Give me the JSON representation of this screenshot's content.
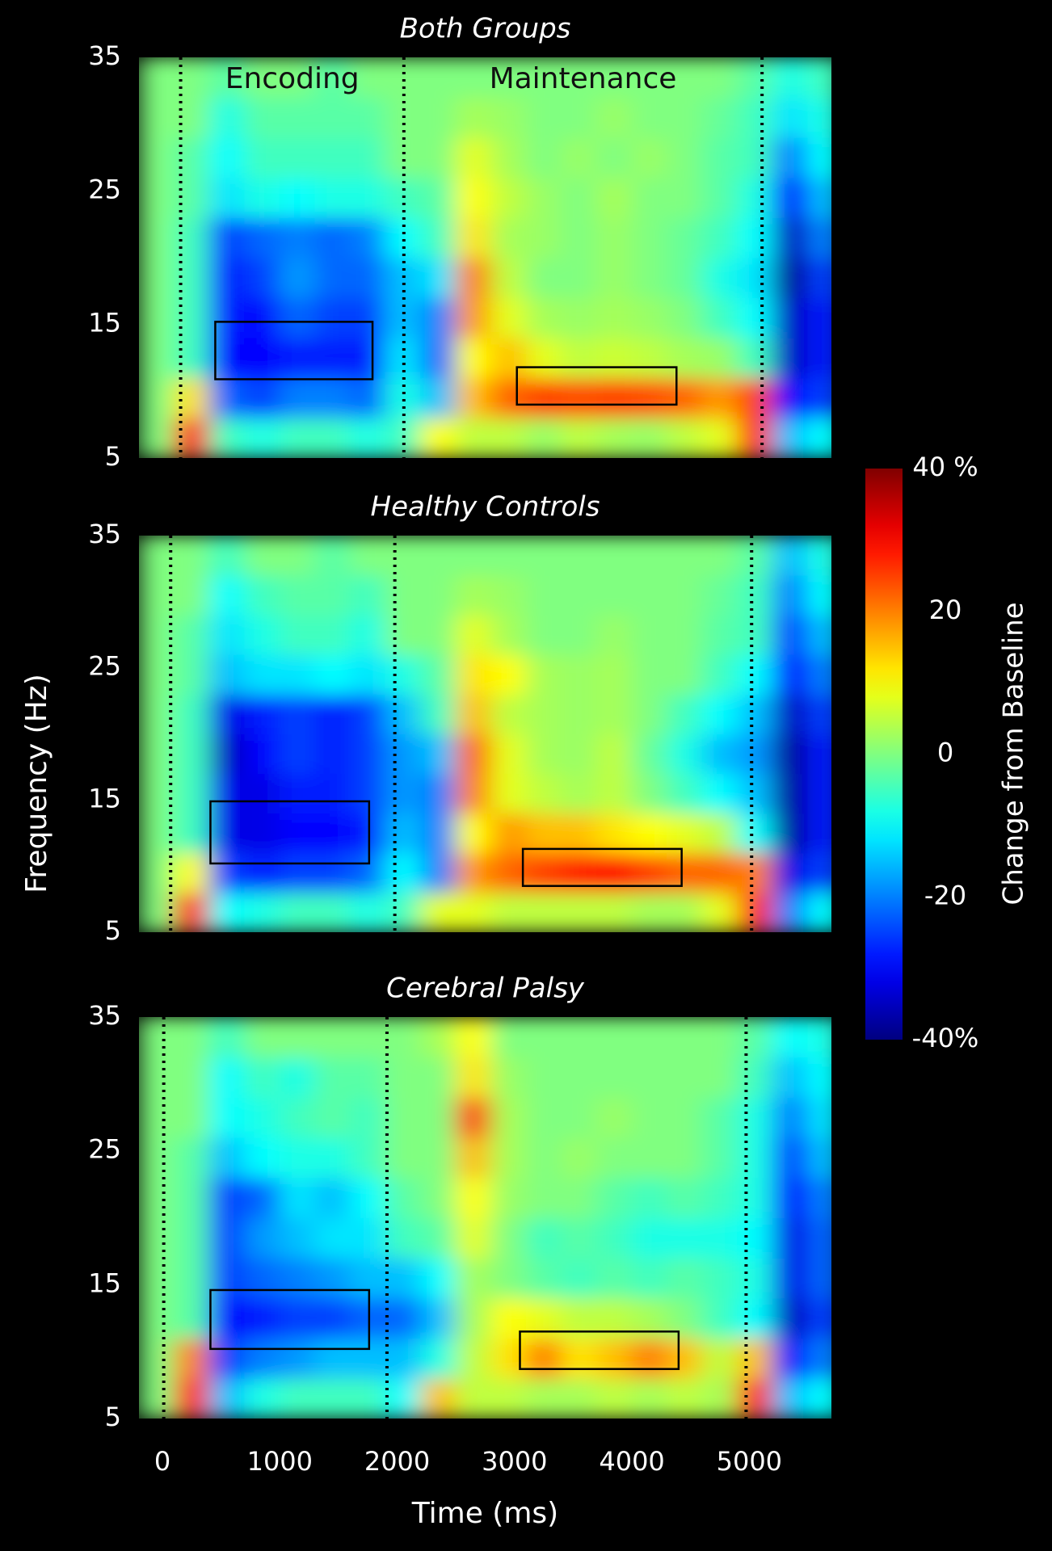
{
  "chart_data": [
    {
      "type": "heatmap",
      "title": "Both Groups",
      "colormap": "jet",
      "annotations": [
        "Encoding",
        "Maintenance"
      ],
      "xlim": [
        -200,
        5700
      ],
      "ylim": [
        5,
        35
      ],
      "yticks": [
        5,
        15,
        25,
        35
      ],
      "zlim": [
        -40,
        40
      ],
      "x": [
        -50,
        250,
        550,
        850,
        1150,
        1450,
        1750,
        2050,
        2350,
        2650,
        2950,
        3250,
        3550,
        3850,
        4150,
        4450,
        4750,
        5050,
        5350,
        5650
      ],
      "y": [
        6.5,
        9.5,
        12.5,
        15.5,
        18.5,
        21.5,
        24.5,
        27.5,
        30.5,
        33.5
      ],
      "z": [
        [
          0,
          30,
          -5,
          -8,
          -5,
          -5,
          -8,
          -5,
          10,
          5,
          5,
          2,
          5,
          3,
          2,
          5,
          8,
          30,
          -15,
          -10
        ],
        [
          0,
          12,
          -22,
          -25,
          -20,
          -20,
          -22,
          -8,
          -15,
          15,
          22,
          25,
          24,
          25,
          24,
          22,
          18,
          25,
          -30,
          -25
        ],
        [
          0,
          -5,
          -30,
          -30,
          -28,
          -28,
          -28,
          -12,
          -22,
          10,
          15,
          8,
          5,
          6,
          5,
          3,
          2,
          -5,
          -35,
          -28
        ],
        [
          0,
          -5,
          -28,
          -30,
          -22,
          -25,
          -25,
          -15,
          -20,
          18,
          8,
          3,
          2,
          3,
          2,
          0,
          -5,
          -10,
          -35,
          -28
        ],
        [
          0,
          -5,
          -28,
          -25,
          -18,
          -22,
          -22,
          -15,
          -12,
          20,
          5,
          0,
          0,
          2,
          0,
          -2,
          -8,
          -12,
          -38,
          -25
        ],
        [
          0,
          -5,
          -25,
          -22,
          -20,
          -22,
          -20,
          -10,
          -5,
          12,
          3,
          2,
          0,
          2,
          0,
          -2,
          -5,
          -10,
          -35,
          -20
        ],
        [
          0,
          -3,
          -12,
          -8,
          -10,
          -8,
          -8,
          -5,
          -3,
          10,
          5,
          2,
          0,
          3,
          0,
          0,
          -3,
          -8,
          -30,
          -15
        ],
        [
          0,
          -3,
          -10,
          -5,
          -5,
          -5,
          -5,
          0,
          0,
          8,
          3,
          0,
          2,
          0,
          2,
          0,
          -3,
          -5,
          -20,
          -10
        ],
        [
          0,
          0,
          -8,
          -3,
          -3,
          -3,
          -3,
          0,
          0,
          3,
          2,
          0,
          0,
          2,
          0,
          0,
          -2,
          -5,
          -12,
          -8
        ],
        [
          0,
          0,
          -3,
          0,
          0,
          -3,
          0,
          0,
          0,
          0,
          0,
          0,
          0,
          0,
          0,
          0,
          0,
          -3,
          -8,
          -5
        ]
      ],
      "event_lines": [
        155,
        2057,
        5109
      ],
      "boxes": [
        {
          "x": [
            450,
            1790
          ],
          "y": [
            10.9,
            15.2
          ]
        },
        {
          "x": [
            3020,
            4380
          ],
          "y": [
            9.0,
            11.8
          ]
        }
      ]
    },
    {
      "type": "heatmap",
      "title": "Healthy Controls",
      "colormap": "jet",
      "ylabel": "Frequency (Hz)",
      "xlim": [
        -200,
        5700
      ],
      "ylim": [
        5,
        35
      ],
      "yticks": [
        5,
        15,
        25,
        35
      ],
      "zlim": [
        -40,
        40
      ],
      "zlabel": "Change from Baseline",
      "zticks": [
        {
          "value": 40,
          "label": "40 %"
        },
        20,
        0,
        -20,
        {
          "value": -40,
          "label": "-40%"
        }
      ],
      "x": [
        -50,
        250,
        550,
        850,
        1150,
        1450,
        1750,
        2050,
        2350,
        2650,
        2950,
        3250,
        3550,
        3850,
        4150,
        4450,
        4750,
        5050,
        5350,
        5650
      ],
      "y": [
        6.5,
        9.5,
        12.5,
        15.5,
        18.5,
        21.5,
        24.5,
        27.5,
        30.5,
        33.5
      ],
      "z": [
        [
          0,
          28,
          -10,
          -8,
          -5,
          -5,
          -8,
          -5,
          8,
          8,
          5,
          5,
          5,
          5,
          3,
          3,
          8,
          30,
          -20,
          -10
        ],
        [
          0,
          10,
          -25,
          -28,
          -25,
          -25,
          -22,
          -10,
          -20,
          18,
          22,
          25,
          28,
          30,
          25,
          22,
          22,
          20,
          -32,
          -25
        ],
        [
          0,
          -5,
          -32,
          -32,
          -30,
          -30,
          -28,
          -15,
          -20,
          10,
          18,
          15,
          15,
          12,
          10,
          8,
          5,
          -10,
          -38,
          -28
        ],
        [
          0,
          -5,
          -32,
          -32,
          -28,
          -28,
          -25,
          -18,
          -20,
          20,
          8,
          5,
          3,
          5,
          0,
          -5,
          -10,
          -15,
          -38,
          -28
        ],
        [
          0,
          -5,
          -35,
          -30,
          -25,
          -28,
          -25,
          -18,
          -15,
          22,
          8,
          3,
          2,
          5,
          -2,
          -8,
          -15,
          -18,
          -38,
          -28
        ],
        [
          0,
          -5,
          -32,
          -28,
          -25,
          -28,
          -25,
          -15,
          -5,
          15,
          5,
          3,
          2,
          3,
          0,
          -5,
          -10,
          -15,
          -35,
          -25
        ],
        [
          0,
          -3,
          -15,
          -12,
          -12,
          -10,
          -12,
          -8,
          -3,
          12,
          10,
          3,
          2,
          3,
          0,
          0,
          -5,
          -10,
          -30,
          -20
        ],
        [
          0,
          -3,
          -12,
          -8,
          -5,
          -5,
          -8,
          0,
          0,
          8,
          3,
          0,
          0,
          2,
          0,
          0,
          -3,
          -5,
          -25,
          -15
        ],
        [
          0,
          0,
          -10,
          -5,
          -3,
          -3,
          -5,
          0,
          0,
          3,
          2,
          0,
          0,
          0,
          0,
          0,
          -2,
          -5,
          -20,
          -10
        ],
        [
          0,
          0,
          -5,
          0,
          0,
          -3,
          0,
          0,
          0,
          0,
          0,
          0,
          0,
          0,
          0,
          0,
          0,
          -3,
          -15,
          -8
        ]
      ],
      "event_lines": [
        70,
        1980,
        5020
      ],
      "boxes": [
        {
          "x": [
            409,
            1761
          ],
          "y": [
            10.2,
            14.9
          ]
        },
        {
          "x": [
            3071,
            4424
          ],
          "y": [
            8.5,
            11.3
          ]
        }
      ]
    },
    {
      "type": "heatmap",
      "title": "Cerebral Palsy",
      "colormap": "jet",
      "xlabel": "Time (ms)",
      "xlim": [
        -200,
        5700
      ],
      "xticks": [
        0,
        1000,
        2000,
        3000,
        4000,
        5000
      ],
      "ylim": [
        5,
        35
      ],
      "yticks": [
        5,
        15,
        25,
        35
      ],
      "zlim": [
        -40,
        40
      ],
      "x": [
        -50,
        250,
        550,
        850,
        1150,
        1450,
        1750,
        2050,
        2350,
        2650,
        2950,
        3250,
        3550,
        3850,
        4150,
        4450,
        4750,
        5050,
        5350,
        5650
      ],
      "y": [
        6.5,
        9.5,
        12.5,
        15.5,
        18.5,
        21.5,
        24.5,
        27.5,
        30.5,
        33.5
      ],
      "z": [
        [
          0,
          30,
          -15,
          -8,
          -5,
          -5,
          -5,
          -10,
          15,
          5,
          5,
          3,
          3,
          5,
          3,
          5,
          3,
          30,
          -15,
          -10
        ],
        [
          0,
          20,
          -25,
          -20,
          -18,
          -15,
          -15,
          -15,
          -8,
          5,
          12,
          20,
          12,
          15,
          20,
          15,
          5,
          15,
          -30,
          -20
        ],
        [
          0,
          -3,
          -30,
          -28,
          -25,
          -25,
          -22,
          -22,
          -15,
          3,
          10,
          8,
          5,
          5,
          3,
          0,
          -5,
          -10,
          -35,
          -25
        ],
        [
          0,
          -3,
          -25,
          -22,
          -20,
          -18,
          -15,
          -15,
          -10,
          3,
          0,
          -3,
          -5,
          -3,
          -5,
          -3,
          -5,
          -8,
          -32,
          -22
        ],
        [
          0,
          -3,
          -25,
          -18,
          -15,
          -12,
          -12,
          -5,
          -3,
          8,
          0,
          -5,
          -3,
          -5,
          -8,
          -8,
          -8,
          -10,
          -32,
          -22
        ],
        [
          0,
          -3,
          -25,
          -22,
          -12,
          -15,
          -10,
          -3,
          0,
          10,
          2,
          0,
          0,
          -3,
          -5,
          -3,
          -5,
          -8,
          -30,
          -20
        ],
        [
          0,
          -3,
          -15,
          -10,
          -8,
          -8,
          -5,
          0,
          0,
          15,
          3,
          0,
          2,
          0,
          0,
          0,
          -3,
          -8,
          -25,
          -15
        ],
        [
          0,
          0,
          -10,
          -8,
          -5,
          -3,
          -5,
          0,
          0,
          25,
          3,
          0,
          0,
          2,
          0,
          0,
          -3,
          -8,
          -20,
          -12
        ],
        [
          0,
          0,
          -10,
          -5,
          -8,
          -3,
          -3,
          0,
          0,
          12,
          2,
          0,
          0,
          0,
          0,
          0,
          0,
          -5,
          -15,
          -10
        ],
        [
          0,
          0,
          -5,
          0,
          0,
          0,
          0,
          0,
          3,
          10,
          0,
          0,
          0,
          0,
          0,
          0,
          0,
          -3,
          -10,
          -8
        ]
      ],
      "event_lines": [
        11,
        1913,
        4973
      ],
      "boxes": [
        {
          "x": [
            409,
            1761
          ],
          "y": [
            10.2,
            14.6
          ]
        },
        {
          "x": [
            3046,
            4398
          ],
          "y": [
            8.7,
            11.5
          ]
        }
      ]
    }
  ]
}
